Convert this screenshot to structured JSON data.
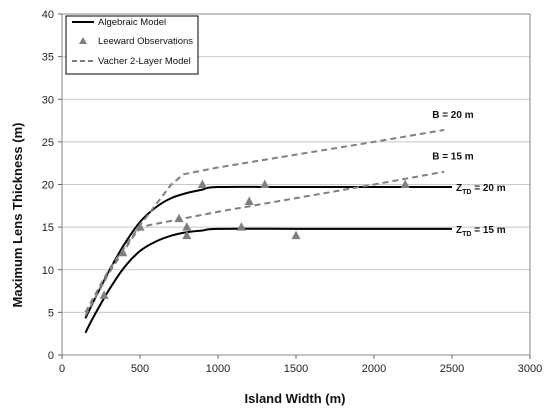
{
  "chart_data": {
    "type": "line",
    "title": "",
    "xlabel": "Island Width (m)",
    "ylabel": "Maximum Lens Thickness (m)",
    "xlim": [
      0,
      3000
    ],
    "ylim": [
      0,
      40
    ],
    "xticks": [
      0,
      500,
      1000,
      1500,
      2000,
      2500,
      3000
    ],
    "yticks": [
      0,
      5,
      10,
      15,
      20,
      25,
      30,
      35,
      40
    ],
    "grid": "horizontal",
    "legend": {
      "position": "top-left",
      "entries": [
        {
          "label": "Algebraic Model",
          "style": "solid-line",
          "color": "#000000"
        },
        {
          "label": "Leeward Observations",
          "style": "triangle-marker",
          "color": "#7f7f7f"
        },
        {
          "label": "Vacher 2-Layer Model",
          "style": "dashed-line",
          "color": "#808080"
        }
      ]
    },
    "series": [
      {
        "name": "Algebraic Model",
        "style": "solid",
        "color": "#000000",
        "annotation": {
          "main": "Z",
          "sub": "TD",
          "rest": " = 20 m"
        },
        "points": [
          [
            150,
            4.3
          ],
          [
            200,
            6.2
          ],
          [
            300,
            9.8
          ],
          [
            400,
            13.0
          ],
          [
            500,
            15.6
          ],
          [
            600,
            17.3
          ],
          [
            700,
            18.4
          ],
          [
            800,
            19.0
          ],
          [
            900,
            19.4
          ],
          [
            1000,
            19.7
          ],
          [
            1500,
            19.7
          ],
          [
            2000,
            19.7
          ],
          [
            2500,
            19.7
          ]
        ]
      },
      {
        "name": "Algebraic Model",
        "style": "solid",
        "color": "#000000",
        "annotation": {
          "main": "Z",
          "sub": "TD",
          "rest": " = 15 m"
        },
        "points": [
          [
            150,
            2.6
          ],
          [
            200,
            4.4
          ],
          [
            300,
            7.6
          ],
          [
            400,
            10.3
          ],
          [
            500,
            12.2
          ],
          [
            600,
            13.3
          ],
          [
            700,
            14.0
          ],
          [
            800,
            14.4
          ],
          [
            900,
            14.6
          ],
          [
            1000,
            14.8
          ],
          [
            1500,
            14.8
          ],
          [
            2000,
            14.8
          ],
          [
            2500,
            14.8
          ]
        ]
      },
      {
        "name": "Vacher 2-Layer Model",
        "style": "dashed",
        "color": "#808080",
        "annotation": {
          "main": "B = 20 m",
          "sub": "",
          "rest": ""
        },
        "points": [
          [
            150,
            5.0
          ],
          [
            300,
            10.0
          ],
          [
            500,
            15.2
          ],
          [
            700,
            20.0
          ],
          [
            780,
            21.2
          ],
          [
            1000,
            22.0
          ],
          [
            1500,
            23.5
          ],
          [
            2000,
            25.0
          ],
          [
            2450,
            26.4
          ]
        ]
      },
      {
        "name": "Vacher 2-Layer Model",
        "style": "dashed",
        "color": "#808080",
        "annotation": {
          "main": "B = 15 m",
          "sub": "",
          "rest": ""
        },
        "points": [
          [
            150,
            4.6
          ],
          [
            300,
            9.6
          ],
          [
            480,
            14.5
          ],
          [
            550,
            15.2
          ],
          [
            1000,
            16.8
          ],
          [
            1500,
            18.4
          ],
          [
            2000,
            20.0
          ],
          [
            2450,
            21.5
          ]
        ]
      },
      {
        "name": "Leeward Observations",
        "style": "triangle",
        "color": "#7f7f7f",
        "points": [
          [
            270,
            7.0
          ],
          [
            390,
            12.0
          ],
          [
            500,
            15.0
          ],
          [
            750,
            16.0
          ],
          [
            800,
            15.0
          ],
          [
            800,
            14.0
          ],
          [
            900,
            20.0
          ],
          [
            1150,
            15.0
          ],
          [
            1200,
            18.0
          ],
          [
            1300,
            20.0
          ],
          [
            1500,
            14.0
          ],
          [
            2200,
            20.0
          ]
        ]
      }
    ]
  }
}
